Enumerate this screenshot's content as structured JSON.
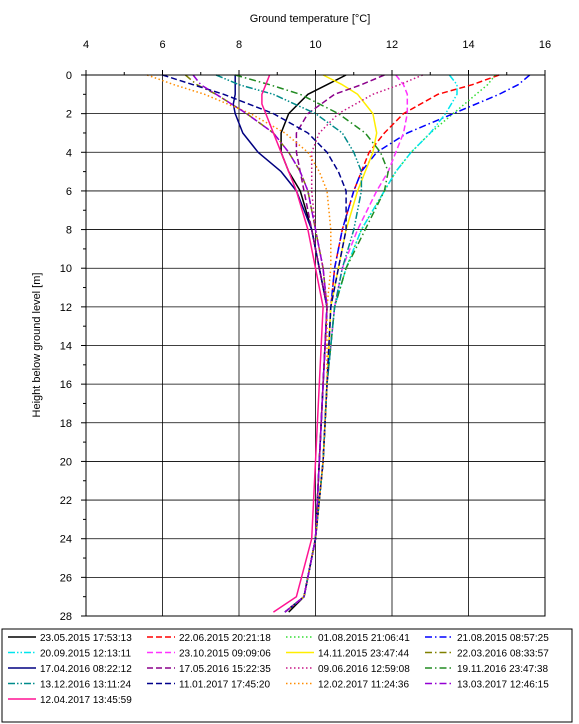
{
  "chart_data": {
    "type": "line",
    "title": "",
    "xlabel": "Ground temperature [°C]",
    "ylabel": "Height below ground level [m]",
    "x_axis_position": "top",
    "y_axis_inverted": true,
    "xlim": [
      4,
      16
    ],
    "ylim": [
      0,
      28
    ],
    "xticks": [
      "4",
      "6",
      "8",
      "10",
      "12",
      "14",
      "16"
    ],
    "yticks": [
      "0",
      "2",
      "4",
      "6",
      "8",
      "10",
      "12",
      "14",
      "16",
      "18",
      "20",
      "22",
      "24",
      "26",
      "28"
    ],
    "grid": true,
    "legend_placement": "bottom",
    "series": [
      {
        "name": "23.05.2015 17:53:13",
        "color": "#000000",
        "dash": "solid",
        "depth": [
          0,
          0.5,
          1,
          2,
          3,
          4,
          5,
          6,
          8,
          10,
          12,
          16,
          20,
          24,
          27,
          27.8
        ],
        "temp": [
          10.8,
          10.3,
          9.8,
          9.3,
          9.1,
          9.1,
          9.3,
          9.6,
          9.9,
          10.1,
          10.3,
          10.2,
          10.1,
          10.0,
          9.7,
          9.3
        ]
      },
      {
        "name": "22.06.2015 20:21:18",
        "color": "#ff0000",
        "dash": "dash",
        "depth": [
          0,
          0.5,
          1,
          2,
          3,
          4,
          5,
          6,
          8,
          10,
          12,
          16,
          20,
          24,
          27,
          27.8
        ],
        "temp": [
          14.8,
          14.1,
          13.2,
          12.3,
          11.8,
          11.4,
          11.2,
          11.0,
          10.7,
          10.5,
          10.4,
          10.3,
          10.2,
          10.0,
          9.7,
          9.2
        ]
      },
      {
        "name": "01.08.2015 21:06:41",
        "color": "#33dd33",
        "dash": "dot",
        "depth": [
          0,
          0.5,
          1,
          2,
          3,
          4,
          5,
          6,
          8,
          10,
          12,
          16,
          20,
          24,
          27,
          27.8
        ],
        "temp": [
          14.7,
          14.5,
          14.2,
          13.6,
          13.0,
          12.5,
          12.1,
          11.8,
          11.2,
          10.8,
          10.5,
          10.3,
          10.2,
          10.0,
          9.7,
          9.2
        ]
      },
      {
        "name": "21.08.2015 08:57:25",
        "color": "#0000ff",
        "dash": "dashdot",
        "depth": [
          0,
          0.5,
          1,
          2,
          3,
          4,
          5,
          6,
          8,
          10,
          12,
          16,
          20,
          24,
          27,
          27.8
        ],
        "temp": [
          15.6,
          15.3,
          14.8,
          13.6,
          12.4,
          11.6,
          11.2,
          11.0,
          10.7,
          10.5,
          10.4,
          10.3,
          10.2,
          10.0,
          9.7,
          9.2
        ]
      },
      {
        "name": "20.09.2015 12:13:11",
        "color": "#00e5ee",
        "dash": "dashdotdot",
        "depth": [
          0,
          0.5,
          1,
          2,
          3,
          4,
          5,
          6,
          8,
          10,
          12,
          16,
          20,
          24,
          27,
          27.8
        ],
        "temp": [
          13.5,
          13.7,
          13.7,
          13.4,
          13.0,
          12.5,
          12.1,
          11.8,
          11.2,
          10.8,
          10.5,
          10.3,
          10.2,
          10.0,
          9.7,
          9.2
        ]
      },
      {
        "name": "23.10.2015 09:09:06",
        "color": "#ff33ff",
        "dash": "dash",
        "depth": [
          0,
          0.5,
          1,
          2,
          3,
          4,
          5,
          6,
          8,
          10,
          12,
          16,
          20,
          24,
          27,
          27.8
        ],
        "temp": [
          12.1,
          12.3,
          12.4,
          12.4,
          12.3,
          12.1,
          11.9,
          11.6,
          11.1,
          10.7,
          10.5,
          10.3,
          10.2,
          10.0,
          9.7,
          9.2
        ]
      },
      {
        "name": "14.11.2015 23:47:44",
        "color": "#ffee00",
        "dash": "solid",
        "depth": [
          0,
          0.5,
          1,
          2,
          3,
          4,
          5,
          6,
          8,
          10,
          12,
          16,
          20,
          24,
          27,
          27.8
        ],
        "temp": [
          10.2,
          10.7,
          11.1,
          11.5,
          11.6,
          11.5,
          11.3,
          11.1,
          10.8,
          10.6,
          10.4,
          10.3,
          10.2,
          10.0,
          9.7,
          9.2
        ]
      },
      {
        "name": "22.03.2016 08:33:57",
        "color": "#808000",
        "dash": "dashdot",
        "depth": [
          0,
          0.5,
          1,
          2,
          3,
          4,
          5,
          6,
          8,
          10,
          12,
          16,
          20,
          24,
          27,
          27.8
        ],
        "temp": [
          6.6,
          6.9,
          7.4,
          8.2,
          8.9,
          9.3,
          9.6,
          9.8,
          10.0,
          10.2,
          10.3,
          10.2,
          10.1,
          10.0,
          9.7,
          9.2
        ]
      },
      {
        "name": "17.04.2016 08:22:12",
        "color": "#000080",
        "dash": "solid",
        "depth": [
          0,
          0.5,
          1,
          1.5,
          2,
          3,
          4,
          5,
          6,
          8,
          10,
          12,
          16,
          20,
          24,
          27,
          27.8
        ],
        "temp": [
          7.9,
          7.9,
          7.9,
          7.85,
          7.9,
          8.1,
          8.5,
          9.1,
          9.5,
          9.9,
          10.1,
          10.3,
          10.2,
          10.1,
          10.0,
          9.7,
          9.2
        ]
      },
      {
        "name": "17.05.2016 15:22:35",
        "color": "#8b008b",
        "dash": "dash",
        "depth": [
          0,
          0.5,
          1,
          2,
          3,
          4,
          5,
          6,
          8,
          10,
          12,
          16,
          20,
          24,
          27,
          27.8
        ],
        "temp": [
          11.8,
          11.2,
          10.5,
          9.8,
          9.5,
          9.5,
          9.6,
          9.7,
          9.9,
          10.1,
          10.3,
          10.2,
          10.1,
          10.0,
          9.7,
          9.2
        ]
      },
      {
        "name": "09.06.2016 12:59:08",
        "color": "#c71585",
        "dash": "dot",
        "depth": [
          0,
          0.5,
          1,
          2,
          3,
          4,
          5,
          6,
          8,
          10,
          12,
          16,
          20,
          24,
          27,
          27.8
        ],
        "temp": [
          12.8,
          12.2,
          11.5,
          10.6,
          10.1,
          9.9,
          9.9,
          9.9,
          10.0,
          10.2,
          10.3,
          10.2,
          10.1,
          10.0,
          9.7,
          9.2
        ]
      },
      {
        "name": "19.11.2016 23:47:38",
        "color": "#228b22",
        "dash": "dashdot",
        "depth": [
          0,
          0.5,
          1,
          2,
          3,
          4,
          5,
          6,
          8,
          10,
          12,
          16,
          20,
          24,
          27,
          27.8
        ],
        "temp": [
          7.9,
          8.8,
          9.6,
          10.6,
          11.3,
          11.7,
          11.9,
          11.8,
          11.3,
          10.8,
          10.5,
          10.3,
          10.2,
          10.0,
          9.7,
          9.2
        ]
      },
      {
        "name": "13.12.2016 13:11:24",
        "color": "#008b8b",
        "dash": "dashdotdot",
        "depth": [
          0,
          0.5,
          1,
          2,
          3,
          4,
          5,
          6,
          8,
          10,
          12,
          16,
          20,
          24,
          27,
          27.8
        ],
        "temp": [
          7.4,
          8.0,
          8.9,
          10.0,
          10.7,
          11.0,
          11.2,
          11.2,
          11.0,
          10.7,
          10.5,
          10.3,
          10.2,
          10.0,
          9.7,
          9.2
        ]
      },
      {
        "name": "11.01.2017 17:45:20",
        "color": "#00008b",
        "dash": "dash",
        "depth": [
          0,
          0.5,
          1,
          2,
          3,
          4,
          5,
          6,
          8,
          10,
          12,
          16,
          20,
          24,
          27,
          27.8
        ],
        "temp": [
          6.0,
          6.8,
          7.6,
          8.9,
          9.8,
          10.3,
          10.6,
          10.8,
          10.8,
          10.6,
          10.4,
          10.3,
          10.2,
          10.0,
          9.7,
          9.2
        ]
      },
      {
        "name": "12.02.2017 11:24:36",
        "color": "#ff8c00",
        "dash": "dot",
        "depth": [
          0,
          0.5,
          1,
          2,
          3,
          4,
          5,
          6,
          8,
          10,
          12,
          16,
          20,
          24,
          27,
          27.8
        ],
        "temp": [
          5.6,
          6.3,
          7.1,
          8.3,
          9.2,
          9.8,
          10.1,
          10.3,
          10.4,
          10.4,
          10.3,
          10.3,
          10.2,
          10.0,
          9.7,
          9.2
        ]
      },
      {
        "name": "13.03.2017 12:46:15",
        "color": "#9400d3",
        "dash": "dashdot",
        "depth": [
          0,
          0.5,
          1,
          2,
          3,
          4,
          5,
          6,
          8,
          10,
          12,
          16,
          20,
          24,
          27,
          27.8
        ],
        "temp": [
          6.8,
          7.0,
          7.4,
          8.2,
          8.9,
          9.3,
          9.6,
          9.8,
          10.0,
          10.2,
          10.3,
          10.2,
          10.1,
          10.0,
          9.7,
          9.2
        ]
      },
      {
        "name": "12.04.2017 13:45:59",
        "color": "#ff1493",
        "dash": "solid",
        "depth": [
          0,
          0.5,
          1,
          1.5,
          2,
          3,
          4,
          5,
          6,
          8,
          10,
          12,
          16,
          20,
          24,
          27,
          27.8
        ],
        "temp": [
          8.8,
          8.7,
          8.6,
          8.6,
          8.7,
          8.9,
          9.1,
          9.3,
          9.5,
          9.8,
          10.0,
          10.2,
          10.1,
          10.0,
          9.9,
          9.5,
          8.9
        ]
      }
    ]
  }
}
